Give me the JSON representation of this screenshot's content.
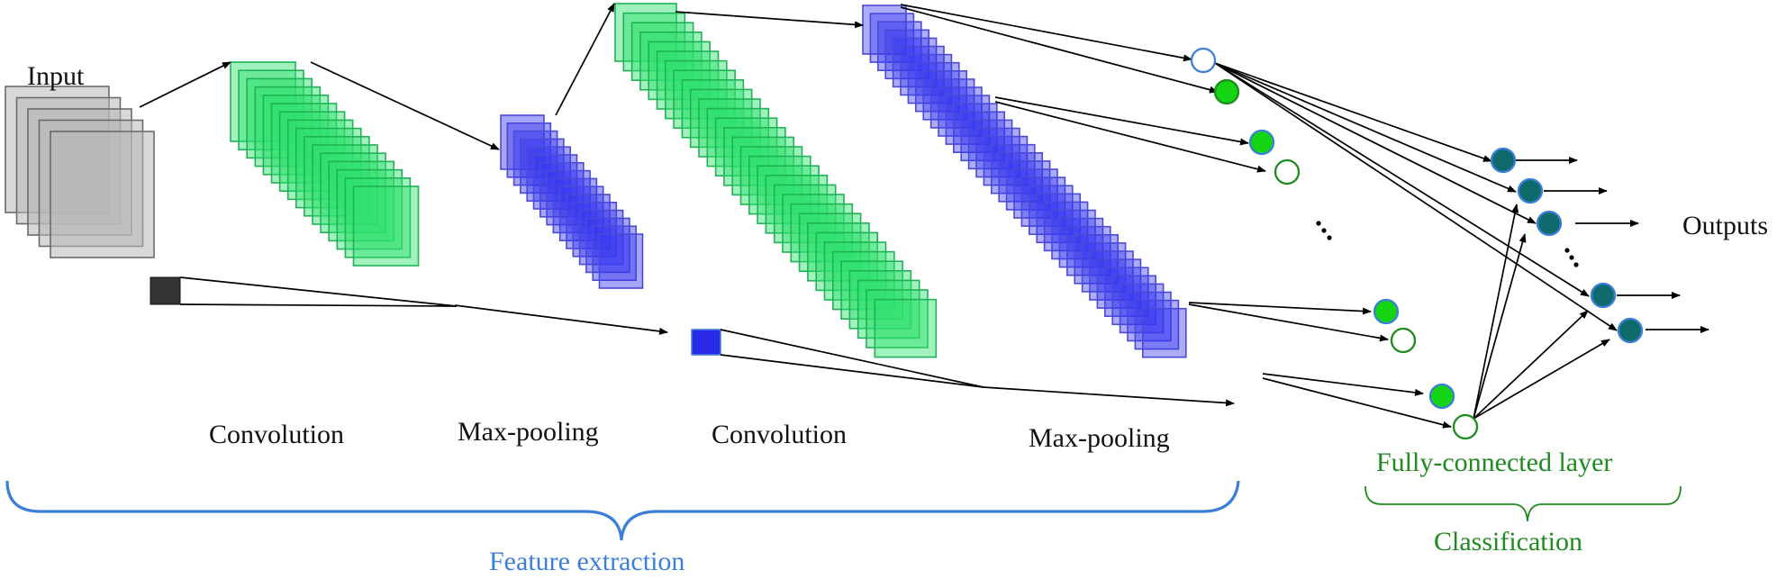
{
  "labels": {
    "input": "Input",
    "conv1": "Convolution",
    "pool1": "Max-pooling",
    "conv2": "Convolution",
    "pool2": "Max-pooling",
    "outputs": "Outputs",
    "fully_connected": "Fully-connected layer",
    "feature_extraction": "Feature extraction",
    "classification": "Classification"
  },
  "colors": {
    "input_fill": "#b8b8b8",
    "input_stroke": "#6b6b6b",
    "conv_fill": "#2ee06e",
    "conv_stroke": "#1fb355",
    "pool_fill": "#3a3af0",
    "pool_stroke": "#4a4ad8",
    "neuron_green": "#14d414",
    "neuron_teal": "#0f6b6b",
    "neuron_ring_blue": "#3b7fd9",
    "neuron_ring_green": "#1f8a1f",
    "brace_blue": "#3b7fd9",
    "brace_green": "#1f8a1f",
    "text_dark": "#111111"
  }
}
